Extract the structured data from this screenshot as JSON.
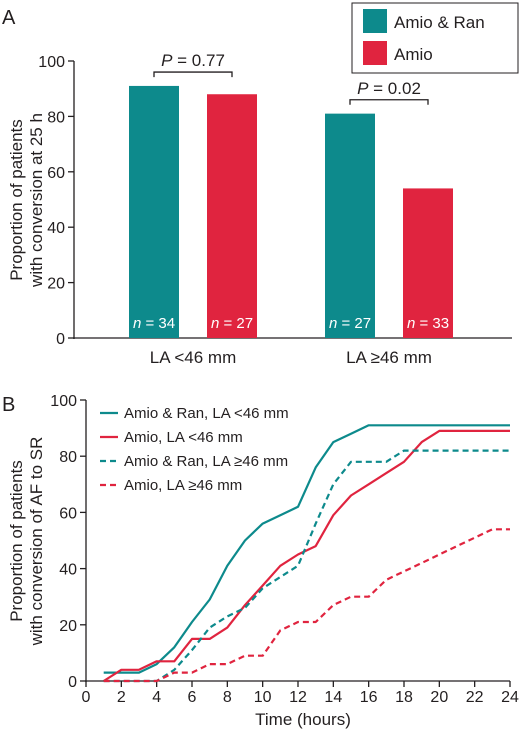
{
  "colors": {
    "teal": "#0d8a8c",
    "red": "#e0243f",
    "axis": "#231f20"
  },
  "chart_data": [
    {
      "panel": "A",
      "type": "bar",
      "ylabel_lines": [
        "Proportion of patients",
        "with conversion at 25 h"
      ],
      "ylim": [
        0,
        100
      ],
      "yticks": [
        0,
        20,
        40,
        60,
        80,
        100
      ],
      "categories": [
        "LA <46 mm",
        "LA ≥46 mm"
      ],
      "series": [
        {
          "name": "Amio & Ran",
          "color": "#0d8a8c",
          "values": [
            91,
            81
          ],
          "n_labels": [
            "n = 34",
            "n = 27"
          ]
        },
        {
          "name": "Amio",
          "color": "#e0243f",
          "values": [
            88,
            54
          ],
          "n_labels": [
            "n = 27",
            "n = 33"
          ]
        }
      ],
      "annotations": [
        {
          "text": "P = 0.77",
          "category": 0,
          "bracket_y": 96
        },
        {
          "text": "P = 0.02",
          "category": 1,
          "bracket_y": 86
        }
      ],
      "legend": "top-right",
      "grid": false
    },
    {
      "panel": "B",
      "type": "line",
      "ylabel_lines": [
        "Proportion of patients",
        "with conversion of AF to SR"
      ],
      "xlabel": "Time (hours)",
      "xlim": [
        0,
        24
      ],
      "ylim": [
        0,
        100
      ],
      "xticks": [
        0,
        2,
        4,
        6,
        8,
        10,
        12,
        14,
        16,
        18,
        20,
        22,
        24
      ],
      "yticks": [
        0,
        20,
        40,
        60,
        80,
        100
      ],
      "legend": "top-left",
      "grid": false,
      "series": [
        {
          "name": "Amio & Ran, LA <46 mm",
          "color": "#0d8a8c",
          "dash": false,
          "x": [
            1,
            2,
            3,
            4,
            5,
            6,
            7,
            8,
            9,
            10,
            11,
            12,
            13,
            14,
            15,
            16,
            17,
            18,
            19,
            20,
            21,
            22,
            23,
            24
          ],
          "y": [
            3,
            3,
            3,
            6,
            12,
            21,
            29,
            41,
            50,
            56,
            59,
            62,
            76,
            85,
            88,
            91,
            91,
            91,
            91,
            91,
            91,
            91,
            91,
            91
          ]
        },
        {
          "name": "Amio, LA <46 mm",
          "color": "#e0243f",
          "dash": false,
          "x": [
            1,
            2,
            3,
            4,
            5,
            6,
            7,
            8,
            9,
            10,
            11,
            12,
            13,
            14,
            15,
            16,
            17,
            18,
            19,
            20,
            21,
            22,
            23,
            24
          ],
          "y": [
            0,
            4,
            4,
            7,
            7,
            15,
            15,
            19,
            27,
            34,
            41,
            45,
            48,
            59,
            66,
            70,
            74,
            78,
            85,
            89,
            89,
            89,
            89,
            89
          ]
        },
        {
          "name": "Amio & Ran, LA ≥46 mm",
          "color": "#0d8a8c",
          "dash": true,
          "x": [
            1,
            2,
            3,
            4,
            5,
            6,
            7,
            8,
            9,
            10,
            11,
            12,
            13,
            14,
            15,
            16,
            17,
            18,
            19,
            20,
            21,
            22,
            23,
            24
          ],
          "y": [
            0,
            0,
            0,
            0,
            4,
            11,
            19,
            23,
            26,
            33,
            37,
            41,
            56,
            70,
            78,
            78,
            78,
            82,
            82,
            82,
            82,
            82,
            82,
            82
          ]
        },
        {
          "name": "Amio, LA ≥46 mm",
          "color": "#e0243f",
          "dash": true,
          "x": [
            1,
            2,
            3,
            4,
            5,
            6,
            7,
            8,
            9,
            10,
            11,
            12,
            13,
            14,
            15,
            16,
            17,
            18,
            19,
            20,
            21,
            22,
            23,
            24
          ],
          "y": [
            0,
            0,
            0,
            0,
            3,
            3,
            6,
            6,
            9,
            9,
            18,
            21,
            21,
            27,
            30,
            30,
            36,
            39,
            42,
            45,
            48,
            51,
            54,
            54
          ]
        }
      ]
    }
  ]
}
